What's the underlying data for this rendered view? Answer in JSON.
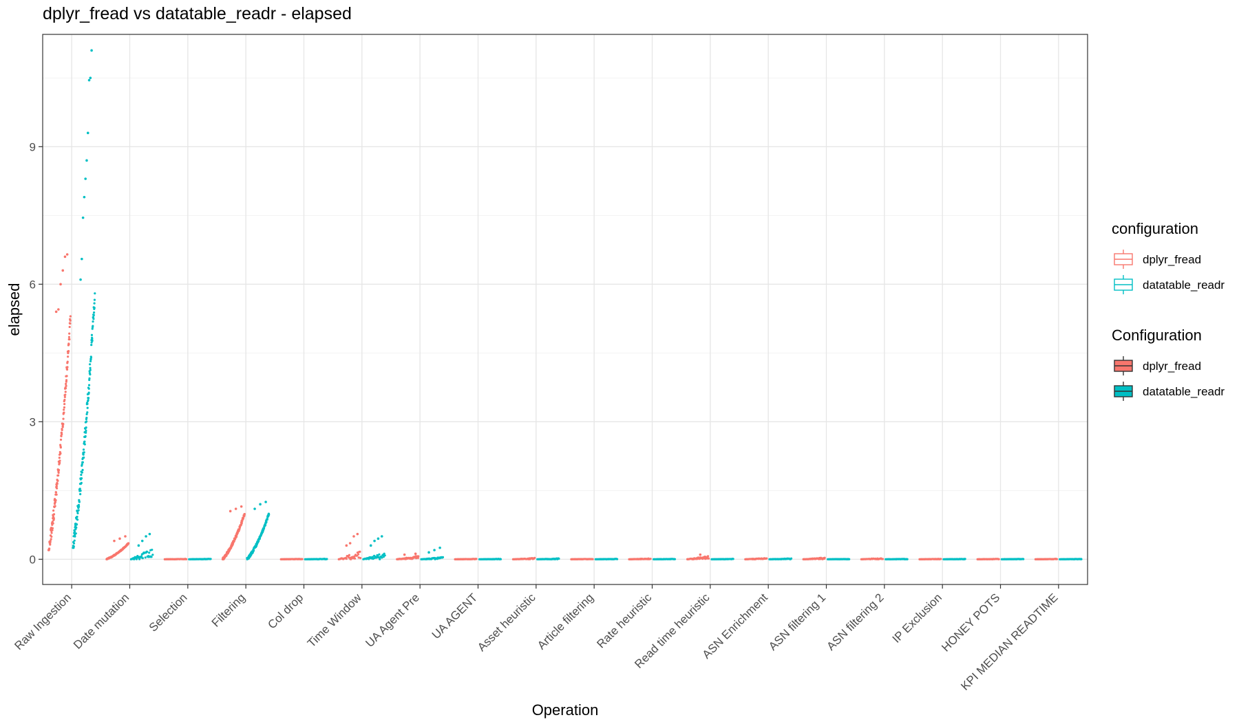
{
  "chart_data": {
    "type": "scatter",
    "title": "dplyr_fread vs datatable_readr - elapsed",
    "xlabel": "Operation",
    "ylabel": "elapsed",
    "ylim": [
      -0.55,
      11.45
    ],
    "yticks": [
      0,
      3,
      6,
      9
    ],
    "grid": true,
    "legend_position": "right",
    "categories": [
      "Raw Ingestion",
      "Date mutation",
      "Selection",
      "Filtering",
      "Col drop",
      "Time Window",
      "UA Agent Pre",
      "UA AGENT",
      "Asset heuristic",
      "Article filtering",
      "Rate heuristic",
      "Read time heuristic",
      "ASN Enrichment",
      "ASN filtering 1",
      "ASN filtering 2",
      "IP Exclusion",
      "HONEY POTS",
      "KPI MEDIAN READTIME"
    ],
    "series": [
      {
        "name": "dplyr_fread",
        "color": "#F8766D",
        "body_ranges": [
          [
            0.2,
            5.3
          ],
          [
            0.0,
            0.35
          ],
          [
            0.0,
            0.01
          ],
          [
            0.0,
            1.0
          ],
          [
            0.0,
            0.01
          ],
          [
            0.0,
            0.2
          ],
          [
            0.0,
            0.08
          ],
          [
            0.0,
            0.01
          ],
          [
            0.0,
            0.03
          ],
          [
            0.0,
            0.01
          ],
          [
            0.0,
            0.02
          ],
          [
            0.0,
            0.08
          ],
          [
            0.0,
            0.03
          ],
          [
            0.0,
            0.04
          ],
          [
            0.0,
            0.03
          ],
          [
            0.0,
            0.01
          ],
          [
            0.0,
            0.01
          ],
          [
            0.0,
            0.01
          ]
        ],
        "outliers": [
          [
            5.4,
            5.45,
            6.0,
            6.3,
            6.6,
            6.65
          ],
          [
            0.4,
            0.45,
            0.5
          ],
          [],
          [
            1.05,
            1.1,
            1.15
          ],
          [],
          [
            0.3,
            0.35,
            0.5,
            0.55
          ],
          [
            0.1,
            0.12
          ],
          [],
          [],
          [],
          [],
          [
            0.1
          ],
          [],
          [],
          [],
          [],
          [],
          []
        ]
      },
      {
        "name": "datatable_readr",
        "color": "#00BFC4",
        "body_ranges": [
          [
            0.25,
            5.8
          ],
          [
            0.0,
            0.25
          ],
          [
            0.0,
            0.01
          ],
          [
            0.0,
            1.0
          ],
          [
            0.0,
            0.01
          ],
          [
            0.0,
            0.15
          ],
          [
            0.0,
            0.05
          ],
          [
            0.0,
            0.01
          ],
          [
            0.0,
            0.02
          ],
          [
            0.0,
            0.01
          ],
          [
            0.0,
            0.01
          ],
          [
            0.0,
            0.01
          ],
          [
            0.0,
            0.02
          ],
          [
            0.0,
            0.01
          ],
          [
            0.0,
            0.01
          ],
          [
            0.0,
            0.01
          ],
          [
            0.0,
            0.01
          ],
          [
            0.0,
            0.01
          ]
        ],
        "outliers": [
          [
            6.1,
            6.55,
            7.45,
            7.9,
            8.3,
            8.7,
            9.3,
            10.45,
            10.5,
            11.1
          ],
          [
            0.3,
            0.4,
            0.5,
            0.55
          ],
          [],
          [
            1.1,
            1.2,
            1.25
          ],
          [],
          [
            0.3,
            0.4,
            0.45,
            0.5
          ],
          [
            0.15,
            0.2,
            0.25
          ],
          [],
          [],
          [],
          [],
          [],
          [],
          [],
          [],
          [],
          [],
          []
        ]
      }
    ],
    "legends": [
      {
        "title": "configuration",
        "style": "outline",
        "entries": [
          "dplyr_fread",
          "datatable_readr"
        ]
      },
      {
        "title": "Configuration",
        "style": "filled",
        "entries": [
          "dplyr_fread",
          "datatable_readr"
        ]
      }
    ]
  }
}
